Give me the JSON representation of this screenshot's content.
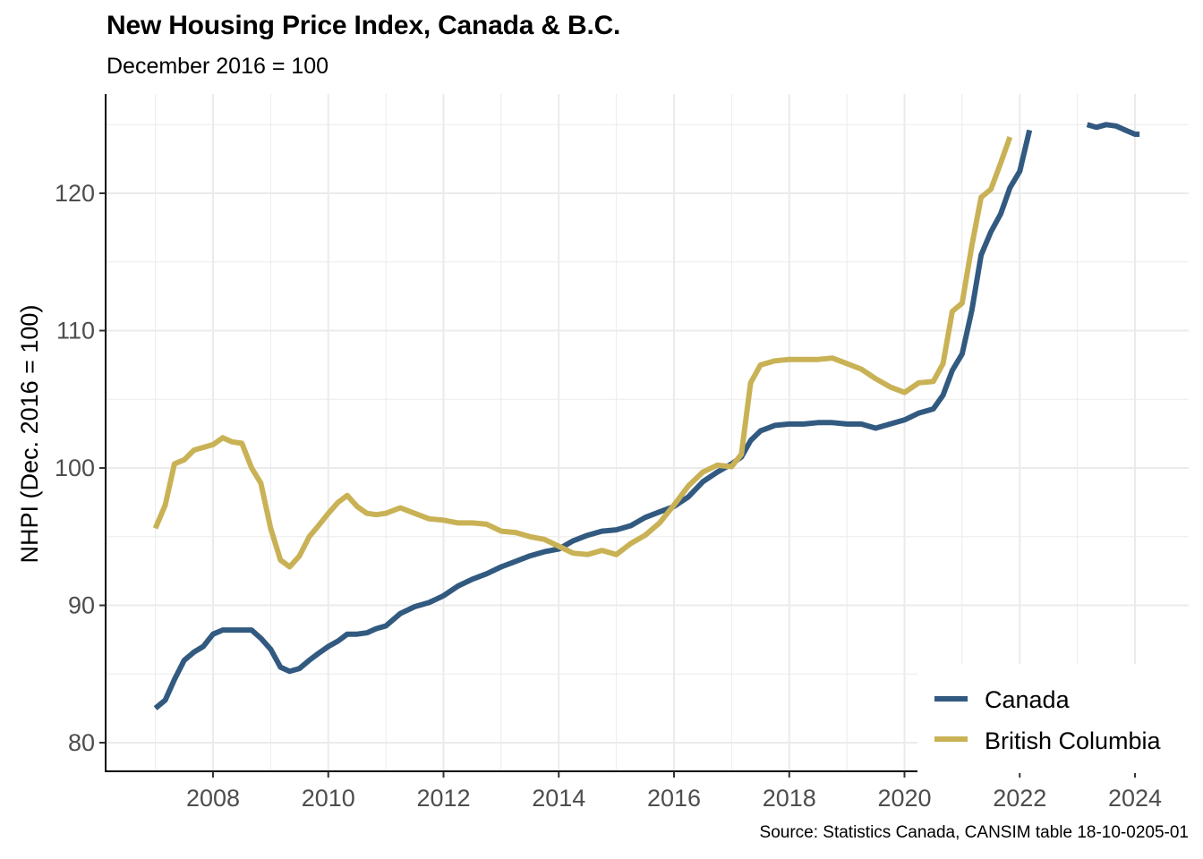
{
  "chart_data": {
    "type": "line",
    "title": "New Housing Price Index, Canada & B.C.",
    "subtitle": "December 2016 = 100",
    "caption": "Source: Statistics Canada, CANSIM table 18-10-0205-01",
    "xlabel": "",
    "ylabel": "NHPI (Dec. 2016 = 100)",
    "xlim": [
      2006.5,
      2024.9
    ],
    "ylim": [
      77.9,
      126.8
    ],
    "x_ticks": [
      2008,
      2010,
      2012,
      2014,
      2016,
      2018,
      2020,
      2022,
      2024
    ],
    "x_tick_labels": [
      "2008",
      "2010",
      "2012",
      "2014",
      "2016",
      "2018",
      "2020",
      "2022",
      "2024"
    ],
    "y_ticks": [
      80,
      90,
      100,
      110,
      120
    ],
    "y_tick_labels": [
      "80",
      "90",
      "100",
      "110",
      "120"
    ],
    "grid": true,
    "legend_position": "bottom-right",
    "series": [
      {
        "name": "Canada",
        "color": "#325a80",
        "segments": [
          {
            "x": [
              2007.0,
              2007.17,
              2007.33,
              2007.5,
              2007.67,
              2007.83,
              2008.0,
              2008.17,
              2008.33,
              2008.5,
              2008.67,
              2008.83,
              2009.0,
              2009.17,
              2009.33,
              2009.5,
              2009.67,
              2009.83,
              2010.0,
              2010.17,
              2010.33,
              2010.5,
              2010.67,
              2010.83,
              2011.0,
              2011.25,
              2011.5,
              2011.75,
              2012.0,
              2012.25,
              2012.5,
              2012.75,
              2013.0,
              2013.25,
              2013.5,
              2013.75,
              2014.0,
              2014.25,
              2014.5,
              2014.75,
              2015.0,
              2015.25,
              2015.5,
              2015.75,
              2016.0,
              2016.25,
              2016.5,
              2016.75,
              2017.0,
              2017.17,
              2017.33,
              2017.5,
              2017.75,
              2018.0,
              2018.25,
              2018.5,
              2018.75,
              2019.0,
              2019.25,
              2019.5,
              2019.75,
              2020.0,
              2020.25,
              2020.5,
              2020.67,
              2020.83,
              2021.0,
              2021.17,
              2021.33,
              2021.5,
              2021.67,
              2021.83,
              2022.0,
              2022.17
            ],
            "y": [
              82.5,
              83.1,
              84.6,
              86.0,
              86.6,
              87.0,
              87.9,
              88.2,
              88.2,
              88.2,
              88.2,
              87.6,
              86.8,
              85.5,
              85.2,
              85.4,
              86.0,
              86.5,
              87.0,
              87.4,
              87.9,
              87.9,
              88.0,
              88.3,
              88.5,
              89.4,
              89.9,
              90.2,
              90.7,
              91.4,
              91.9,
              92.3,
              92.8,
              93.2,
              93.6,
              93.9,
              94.1,
              94.7,
              95.1,
              95.4,
              95.5,
              95.8,
              96.4,
              96.8,
              97.2,
              97.9,
              99.0,
              99.7,
              100.3,
              100.8,
              102.0,
              102.7,
              103.1,
              103.2,
              103.2,
              103.3,
              103.3,
              103.2,
              103.2,
              102.9,
              103.2,
              103.5,
              104.0,
              104.3,
              105.3,
              107.1,
              108.3,
              111.5,
              115.5,
              117.2,
              118.5,
              120.4,
              121.6,
              124.6
            ]
          },
          {
            "x": [
              2023.17,
              2023.33,
              2023.5,
              2023.67,
              2023.83,
              2024.0,
              2024.08
            ],
            "y": [
              125.0,
              124.8,
              125.0,
              124.9,
              124.6,
              124.3,
              124.3
            ]
          }
        ]
      },
      {
        "name": "British Columbia",
        "color": "#c9b255",
        "segments": [
          {
            "x": [
              2007.0,
              2007.17,
              2007.33,
              2007.5,
              2007.67,
              2007.83,
              2008.0,
              2008.17,
              2008.33,
              2008.5,
              2008.67,
              2008.83,
              2009.0,
              2009.17,
              2009.33,
              2009.5,
              2009.67,
              2009.83,
              2010.0,
              2010.17,
              2010.33,
              2010.5,
              2010.67,
              2010.83,
              2011.0,
              2011.25,
              2011.5,
              2011.75,
              2012.0,
              2012.25,
              2012.5,
              2012.75,
              2013.0,
              2013.25,
              2013.5,
              2013.75,
              2014.0,
              2014.25,
              2014.5,
              2014.75,
              2015.0,
              2015.25,
              2015.5,
              2015.75,
              2016.0,
              2016.25,
              2016.5,
              2016.75,
              2017.0,
              2017.17,
              2017.33,
              2017.5,
              2017.75,
              2018.0,
              2018.25,
              2018.5,
              2018.75,
              2019.0,
              2019.25,
              2019.5,
              2019.75,
              2020.0,
              2020.25,
              2020.5,
              2020.67,
              2020.83,
              2021.0,
              2021.17,
              2021.33,
              2021.5,
              2021.67,
              2021.83
            ],
            "y": [
              95.6,
              97.3,
              100.3,
              100.6,
              101.3,
              101.5,
              101.7,
              102.2,
              101.9,
              101.8,
              100.0,
              98.9,
              95.6,
              93.3,
              92.8,
              93.6,
              95.0,
              95.8,
              96.7,
              97.5,
              98.0,
              97.2,
              96.7,
              96.6,
              96.7,
              97.1,
              96.7,
              96.3,
              96.2,
              96.0,
              96.0,
              95.9,
              95.4,
              95.3,
              95.0,
              94.8,
              94.3,
              93.8,
              93.7,
              94.0,
              93.7,
              94.5,
              95.1,
              96.0,
              97.3,
              98.7,
              99.7,
              100.2,
              100.1,
              101.0,
              106.2,
              107.5,
              107.8,
              107.9,
              107.9,
              107.9,
              108.0,
              107.6,
              107.2,
              106.5,
              105.9,
              105.5,
              106.2,
              106.3,
              107.6,
              111.4,
              112.0,
              116.2,
              119.7,
              120.3,
              122.2,
              124.1
            ]
          }
        ]
      }
    ]
  }
}
